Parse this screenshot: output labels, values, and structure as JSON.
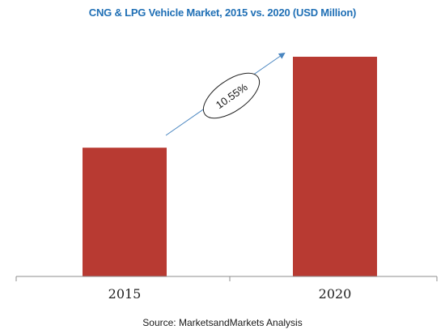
{
  "chart_data": {
    "type": "bar",
    "title": "CNG & LPG Vehicle Market, 2015 vs. 2020 (USD Million)",
    "categories": [
      "2015",
      "2020"
    ],
    "values": [
      0.586,
      1.0
    ],
    "ylim": [
      0,
      1.05
    ],
    "grid": false,
    "bar_color": "#b83a32",
    "annotation": {
      "text": "10.55%",
      "from_category": "2015",
      "to_category": "2020"
    },
    "source": "Source: MarketsandMarkets Analysis"
  }
}
